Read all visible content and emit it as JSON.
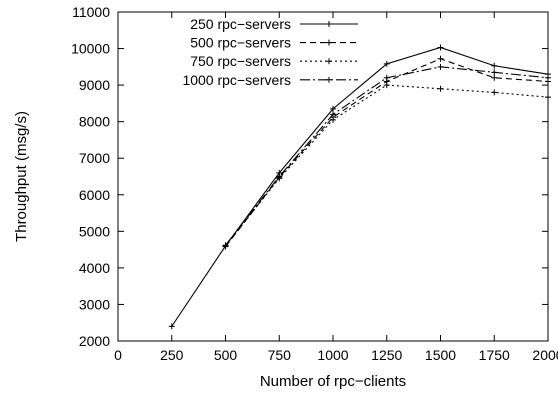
{
  "chart_data": {
    "type": "line",
    "title": "",
    "xlabel": "Number of rpc−clients",
    "ylabel": "Throughput (msg/s)",
    "xlim": [
      0,
      2000
    ],
    "ylim": [
      2000,
      11000
    ],
    "xticks": [
      0,
      250,
      500,
      750,
      1000,
      1250,
      1500,
      1750,
      2000
    ],
    "yticks": [
      2000,
      3000,
      4000,
      5000,
      6000,
      7000,
      8000,
      9000,
      10000,
      11000
    ],
    "grid": false,
    "legend_position": "top-left",
    "x": [
      250,
      500,
      750,
      1000,
      1250,
      1500,
      1750,
      2000
    ],
    "series": [
      {
        "name": "250 rpc−servers",
        "dash": "solid",
        "values": [
          2400,
          4600,
          6600,
          8350,
          9580,
          10030,
          9530,
          9300
        ]
      },
      {
        "name": "500 rpc−servers",
        "dash": "dashed",
        "values": [
          null,
          4580,
          6480,
          8120,
          9100,
          9720,
          9200,
          9100
        ]
      },
      {
        "name": "750 rpc−servers",
        "dash": "dotted",
        "values": [
          null,
          4600,
          6450,
          8050,
          9000,
          8900,
          8800,
          8670
        ]
      },
      {
        "name": "1000 rpc−servers",
        "dash": "dashdot",
        "values": [
          null,
          4620,
          6500,
          8200,
          9200,
          9500,
          9350,
          9200
        ]
      }
    ]
  }
}
